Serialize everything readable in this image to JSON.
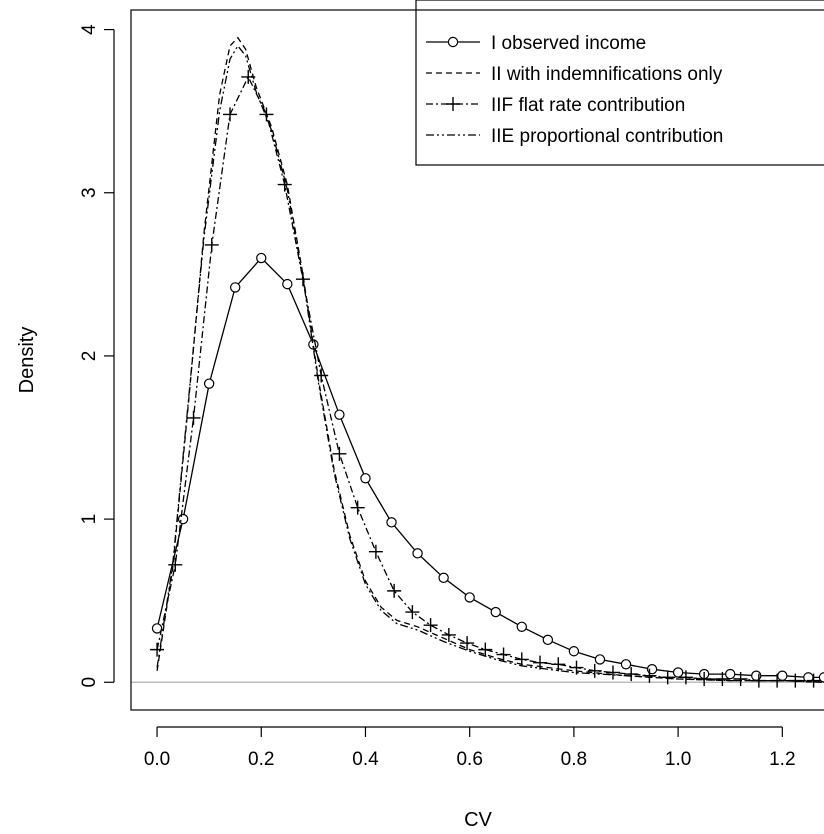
{
  "chart_data": {
    "type": "line",
    "xlabel": "CV",
    "ylabel": "Density",
    "xlim": [
      -0.05,
      1.28
    ],
    "ylim": [
      -0.17,
      4.12
    ],
    "x_ticks": [
      0.0,
      0.2,
      0.4,
      0.6,
      0.8,
      1.0,
      1.2
    ],
    "x_tick_labels": [
      "0.0",
      "0.2",
      "0.4",
      "0.6",
      "0.8",
      "1.0",
      "1.2"
    ],
    "y_ticks": [
      0,
      1,
      2,
      3,
      4
    ],
    "y_tick_labels": [
      "0",
      "1",
      "2",
      "3",
      "4"
    ],
    "zero_line": true,
    "grid": false,
    "legend_position": "top-right",
    "series": [
      {
        "name": "I observed income",
        "line_style": "solid",
        "marker": "circle",
        "x": [
          0.0,
          0.05,
          0.1,
          0.15,
          0.2,
          0.25,
          0.3,
          0.35,
          0.4,
          0.45,
          0.5,
          0.55,
          0.6,
          0.65,
          0.7,
          0.75,
          0.8,
          0.85,
          0.9,
          0.95,
          1.0,
          1.05,
          1.1,
          1.15,
          1.2,
          1.25,
          1.28
        ],
        "y": [
          0.33,
          1.0,
          1.83,
          2.42,
          2.6,
          2.44,
          2.07,
          1.64,
          1.25,
          0.98,
          0.79,
          0.64,
          0.52,
          0.43,
          0.34,
          0.26,
          0.19,
          0.14,
          0.11,
          0.08,
          0.06,
          0.05,
          0.05,
          0.04,
          0.04,
          0.03,
          0.03
        ]
      },
      {
        "name": "II with indemnifications only",
        "line_style": "dashed",
        "marker": "none",
        "x": [
          0.0,
          0.03,
          0.06,
          0.09,
          0.12,
          0.14,
          0.155,
          0.17,
          0.19,
          0.22,
          0.25,
          0.28,
          0.31,
          0.34,
          0.37,
          0.4,
          0.43,
          0.46,
          0.5,
          0.55,
          0.6,
          0.65,
          0.7,
          0.8,
          0.9,
          1.0,
          1.1,
          1.2,
          1.28
        ],
        "y": [
          0.07,
          0.7,
          1.7,
          2.75,
          3.6,
          3.9,
          3.95,
          3.88,
          3.65,
          3.4,
          3.05,
          2.5,
          1.85,
          1.3,
          0.9,
          0.62,
          0.46,
          0.38,
          0.34,
          0.27,
          0.2,
          0.15,
          0.11,
          0.07,
          0.04,
          0.02,
          0.01,
          0.01,
          0.0
        ]
      },
      {
        "name": "IIF flat rate contribution",
        "line_style": "dashdot",
        "marker": "plus",
        "x": [
          0.0,
          0.035,
          0.07,
          0.105,
          0.14,
          0.175,
          0.21,
          0.245,
          0.28,
          0.315,
          0.35,
          0.385,
          0.42,
          0.455,
          0.49,
          0.525,
          0.56,
          0.595,
          0.63,
          0.665,
          0.7,
          0.735,
          0.77,
          0.805,
          0.84,
          0.875,
          0.91,
          0.945,
          0.98,
          1.015,
          1.05,
          1.085,
          1.12,
          1.155,
          1.19,
          1.225,
          1.26
        ],
        "y": [
          0.2,
          0.72,
          1.62,
          2.68,
          3.48,
          3.71,
          3.48,
          3.05,
          2.47,
          1.88,
          1.4,
          1.07,
          0.8,
          0.56,
          0.43,
          0.35,
          0.29,
          0.24,
          0.2,
          0.17,
          0.14,
          0.12,
          0.11,
          0.09,
          0.07,
          0.06,
          0.05,
          0.04,
          0.03,
          0.03,
          0.02,
          0.02,
          0.02,
          0.01,
          0.01,
          0.01,
          0.01
        ]
      },
      {
        "name": "IIE proportional contribution",
        "line_style": "dashdotdot",
        "marker": "none",
        "x": [
          0.0,
          0.03,
          0.06,
          0.09,
          0.12,
          0.14,
          0.155,
          0.17,
          0.19,
          0.22,
          0.25,
          0.28,
          0.31,
          0.34,
          0.37,
          0.4,
          0.43,
          0.46,
          0.5,
          0.55,
          0.6,
          0.65,
          0.7,
          0.8,
          0.9,
          1.0,
          1.1,
          1.2,
          1.28
        ],
        "y": [
          0.09,
          0.72,
          1.72,
          2.72,
          3.5,
          3.82,
          3.9,
          3.84,
          3.62,
          3.38,
          3.02,
          2.48,
          1.83,
          1.28,
          0.88,
          0.6,
          0.44,
          0.36,
          0.32,
          0.25,
          0.19,
          0.14,
          0.1,
          0.06,
          0.04,
          0.02,
          0.01,
          0.01,
          0.0
        ]
      }
    ]
  }
}
